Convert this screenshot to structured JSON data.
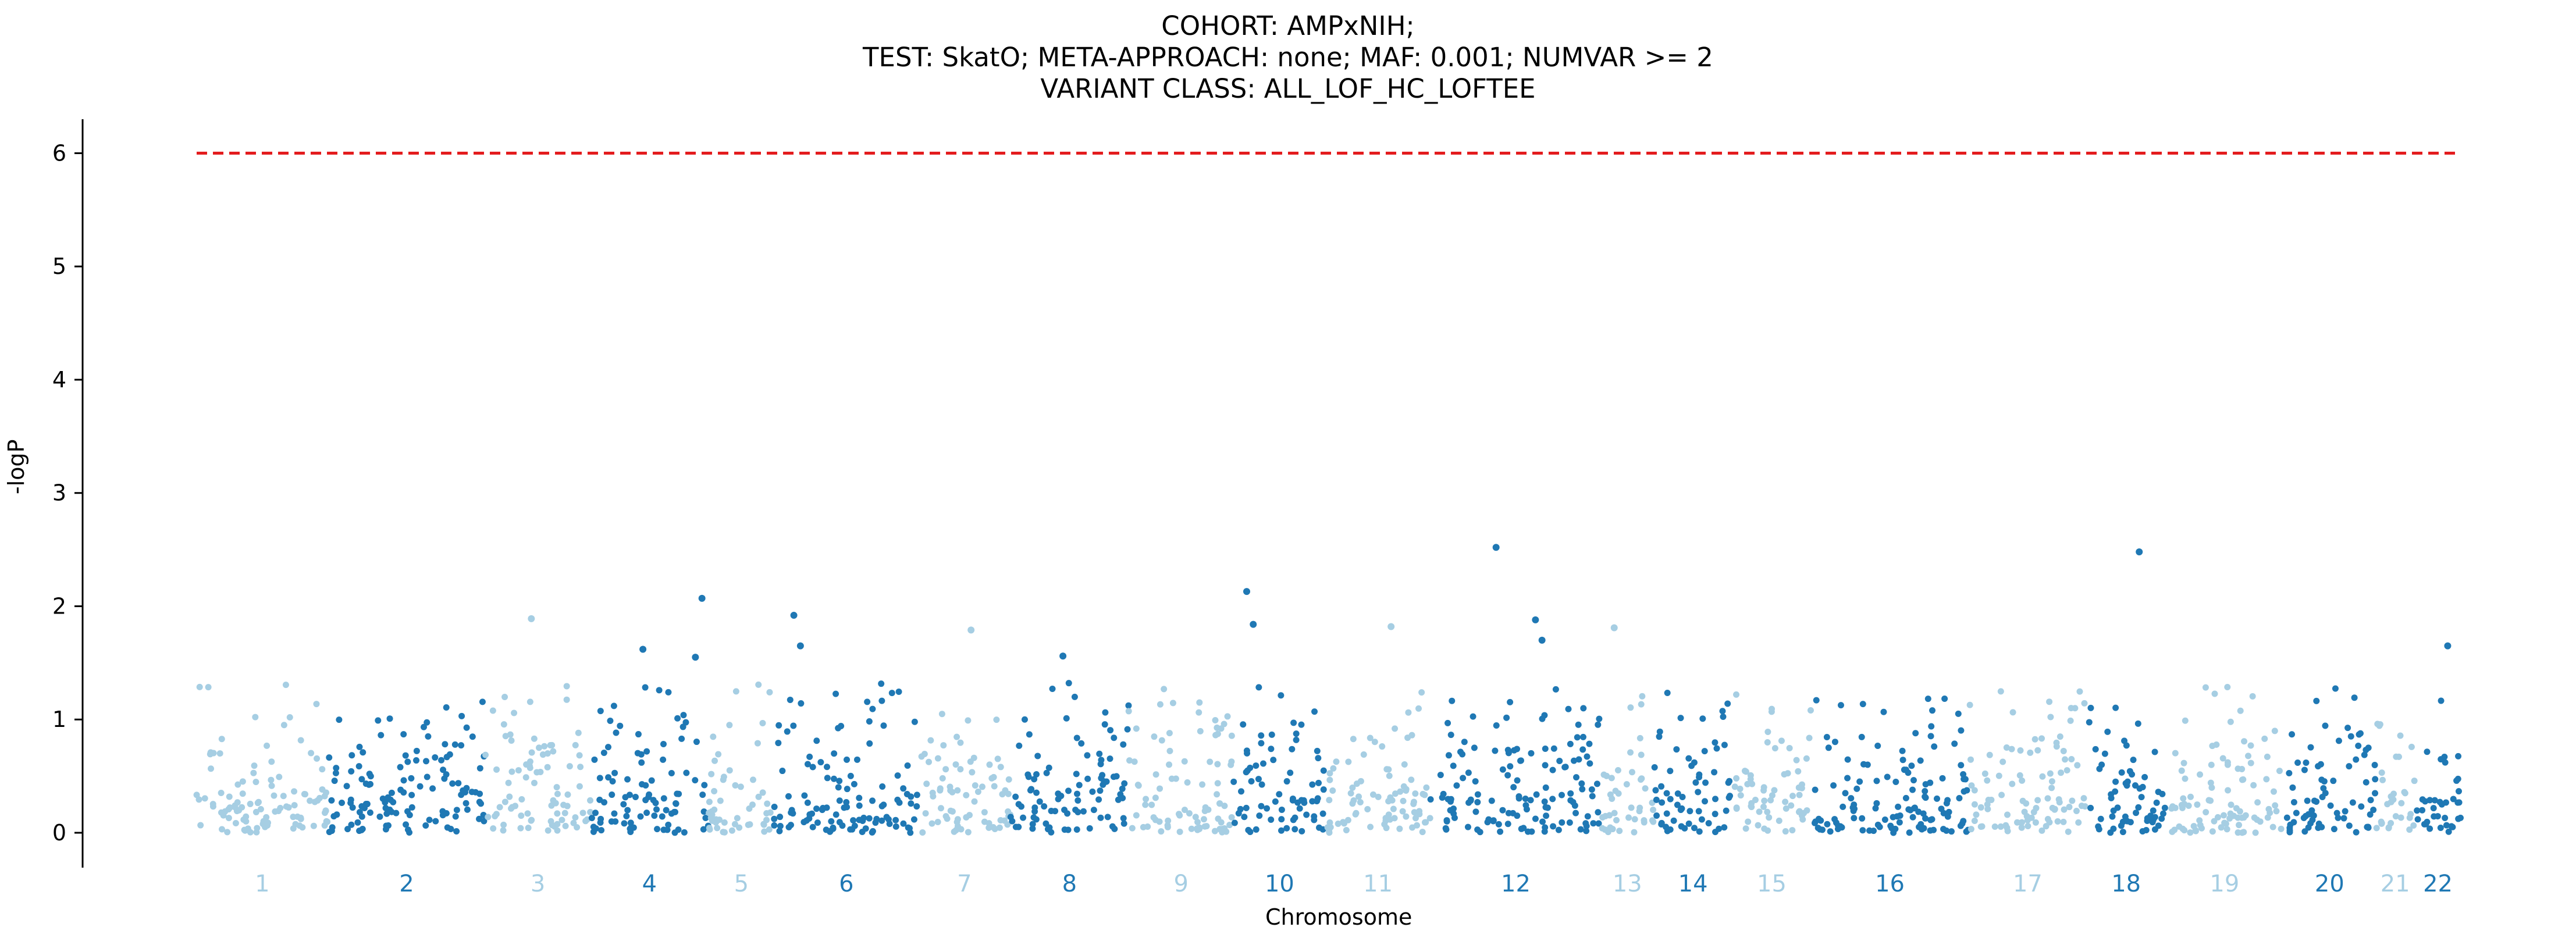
{
  "title": {
    "line1": "COHORT: AMPxNIH;",
    "line2": "TEST: SkatO; META-APPROACH: none; MAF: 0.001; NUMVAR >= 2",
    "line3": "VARIANT CLASS: ALL_LOF_HC_LOFTEE"
  },
  "colors": {
    "light": "#a6cee3",
    "dark": "#1f78b4",
    "threshold": "#e31a1c",
    "axis": "#000000"
  },
  "chart_data": {
    "type": "scatter",
    "xlabel": "Chromosome",
    "ylabel": "-logP",
    "ylim": [
      0,
      6.3
    ],
    "yticks": [
      0,
      1,
      2,
      3,
      4,
      5,
      6
    ],
    "threshold": 6,
    "grid": false,
    "chromosomes": [
      "1",
      "2",
      "3",
      "4",
      "5",
      "6",
      "7",
      "8",
      "9",
      "10",
      "11",
      "12",
      "13",
      "14",
      "15",
      "16",
      "17",
      "18",
      "19",
      "20",
      "21",
      "22"
    ],
    "chromosome_ranges": [
      [
        0,
        1.0
      ],
      [
        1.0,
        2.2
      ],
      [
        2.2,
        3.0
      ],
      [
        3.0,
        3.9
      ],
      [
        3.9,
        4.4
      ],
      [
        4.4,
        5.5
      ],
      [
        5.5,
        6.2
      ],
      [
        6.2,
        7.1
      ],
      [
        7.1,
        7.9
      ],
      [
        7.9,
        8.6
      ],
      [
        8.6,
        9.4
      ],
      [
        9.4,
        10.7
      ],
      [
        10.7,
        11.1
      ],
      [
        11.1,
        11.7
      ],
      [
        11.7,
        12.3
      ],
      [
        12.3,
        13.5
      ],
      [
        13.5,
        14.4
      ],
      [
        14.4,
        15.0
      ],
      [
        15.0,
        15.9
      ],
      [
        15.9,
        16.6
      ],
      [
        16.6,
        16.9
      ],
      [
        16.9,
        17.25
      ]
    ],
    "top_hits": [
      {
        "chrom": "12",
        "x": 9.9,
        "y": 2.52
      },
      {
        "chrom": "18",
        "x": 14.8,
        "y": 2.48
      },
      {
        "chrom": "10",
        "x": 8.0,
        "y": 2.13
      },
      {
        "chrom": "4",
        "x": 3.85,
        "y": 2.07
      },
      {
        "chrom": "6",
        "x": 4.55,
        "y": 1.92
      },
      {
        "chrom": "12",
        "x": 10.2,
        "y": 1.88
      },
      {
        "chrom": "3",
        "x": 2.55,
        "y": 1.89
      },
      {
        "chrom": "10",
        "x": 8.05,
        "y": 1.84
      },
      {
        "chrom": "11",
        "x": 9.1,
        "y": 1.82
      },
      {
        "chrom": "13",
        "x": 10.8,
        "y": 1.81
      },
      {
        "chrom": "7",
        "x": 5.9,
        "y": 1.79
      },
      {
        "chrom": "12",
        "x": 10.25,
        "y": 1.7
      },
      {
        "chrom": "22",
        "x": 17.15,
        "y": 1.65
      },
      {
        "chrom": "6",
        "x": 4.6,
        "y": 1.65
      },
      {
        "chrom": "4",
        "x": 3.4,
        "y": 1.62
      },
      {
        "chrom": "8",
        "x": 6.6,
        "y": 1.56
      },
      {
        "chrom": "4",
        "x": 3.8,
        "y": 1.55
      }
    ]
  }
}
